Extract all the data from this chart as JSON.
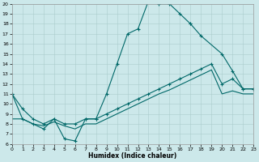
{
  "background_color": "#cce8ea",
  "grid_color": "#aacccc",
  "line_color": "#006868",
  "xlabel": "Humidex (Indice chaleur)",
  "xlim": [
    0,
    23
  ],
  "ylim": [
    6,
    20
  ],
  "xticks": [
    0,
    1,
    2,
    3,
    4,
    5,
    6,
    7,
    8,
    9,
    10,
    11,
    12,
    13,
    14,
    15,
    16,
    17,
    18,
    19,
    20,
    21,
    22,
    23
  ],
  "yticks": [
    6,
    7,
    8,
    9,
    10,
    11,
    12,
    13,
    14,
    15,
    16,
    17,
    18,
    19,
    20
  ],
  "curve1_x": [
    0,
    1,
    2,
    3,
    4,
    5,
    6,
    7,
    8,
    9,
    10,
    11,
    12,
    13,
    14,
    15,
    16,
    17
  ],
  "curve1_y": [
    11,
    8.5,
    8,
    7.5,
    8.5,
    6.5,
    6.3,
    8.5,
    8.5,
    11,
    14,
    17,
    17.5,
    20.3,
    20.0,
    20.0,
    19.0,
    18.0
  ],
  "curve2_x": [
    17,
    18,
    20,
    21,
    22,
    23
  ],
  "curve2_y": [
    18.0,
    16.8,
    15.0,
    13.3,
    11.5,
    11.5
  ],
  "curve3_x": [
    0,
    1,
    2,
    3,
    4,
    5,
    6,
    7,
    8,
    9,
    10,
    11,
    12,
    13,
    14,
    15,
    16,
    17,
    18,
    19,
    20,
    21,
    22,
    23
  ],
  "curve3_y": [
    11,
    9.5,
    8.5,
    8.0,
    8.5,
    8.0,
    8.0,
    8.5,
    8.5,
    9.0,
    9.5,
    10.0,
    10.5,
    11.0,
    11.5,
    12.0,
    12.5,
    13.0,
    13.5,
    14.0,
    12.0,
    12.5,
    11.5,
    11.5
  ],
  "curve4_x": [
    0,
    1,
    2,
    3,
    4,
    5,
    6,
    7,
    8,
    9,
    10,
    11,
    12,
    13,
    14,
    15,
    16,
    17,
    18,
    19,
    20,
    21,
    22,
    23
  ],
  "curve4_y": [
    8.5,
    8.5,
    8.0,
    7.8,
    8.2,
    7.8,
    7.5,
    8.0,
    8.0,
    8.5,
    9.0,
    9.5,
    10.0,
    10.5,
    11.0,
    11.4,
    11.9,
    12.4,
    12.9,
    13.4,
    11.0,
    11.3,
    11.0,
    11.0
  ]
}
